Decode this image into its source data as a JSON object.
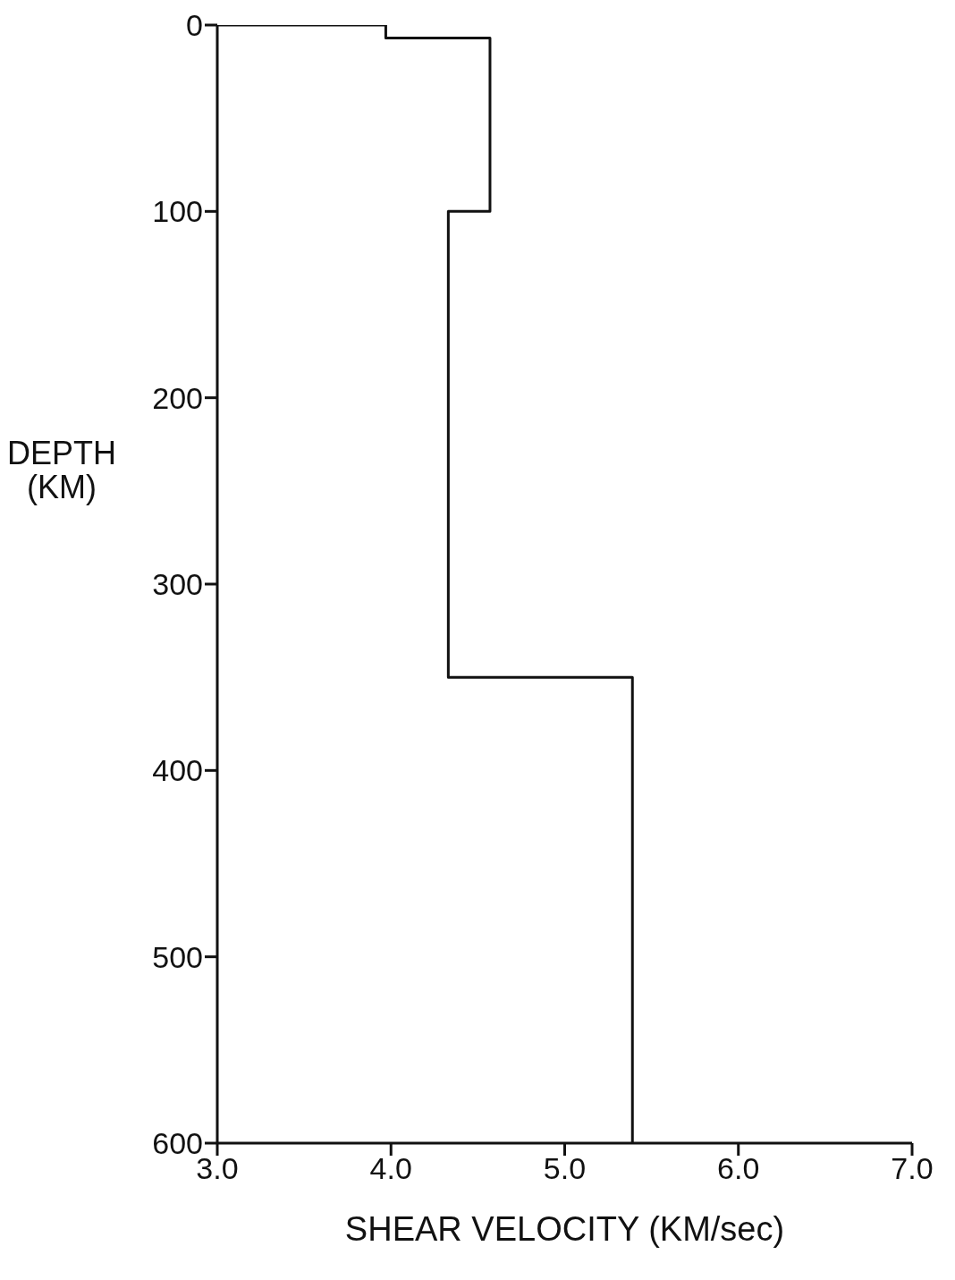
{
  "chart_data": {
    "type": "step",
    "xlabel": "SHEAR VELOCITY (KM/sec)",
    "ylabel": "DEPTH\n(KM)",
    "x": [
      3.0,
      3.97,
      3.97,
      4.57,
      4.57,
      4.33,
      4.33,
      5.39,
      5.39
    ],
    "values": [
      0,
      0,
      7,
      7,
      100,
      100,
      350,
      350,
      600
    ],
    "color": "#111111",
    "marker": "none",
    "line_style": "solid",
    "xlim": [
      3,
      7
    ],
    "xticks": [
      {
        "value": 3,
        "label": "3.0"
      },
      {
        "value": 4,
        "label": "4.0"
      },
      {
        "value": 5,
        "label": "5.0"
      },
      {
        "value": 6,
        "label": "6.0"
      },
      {
        "value": 7,
        "label": "7.0"
      }
    ],
    "ylim": [
      600,
      0
    ],
    "yticks": [
      0,
      100,
      200,
      300,
      400,
      500,
      600
    ]
  }
}
